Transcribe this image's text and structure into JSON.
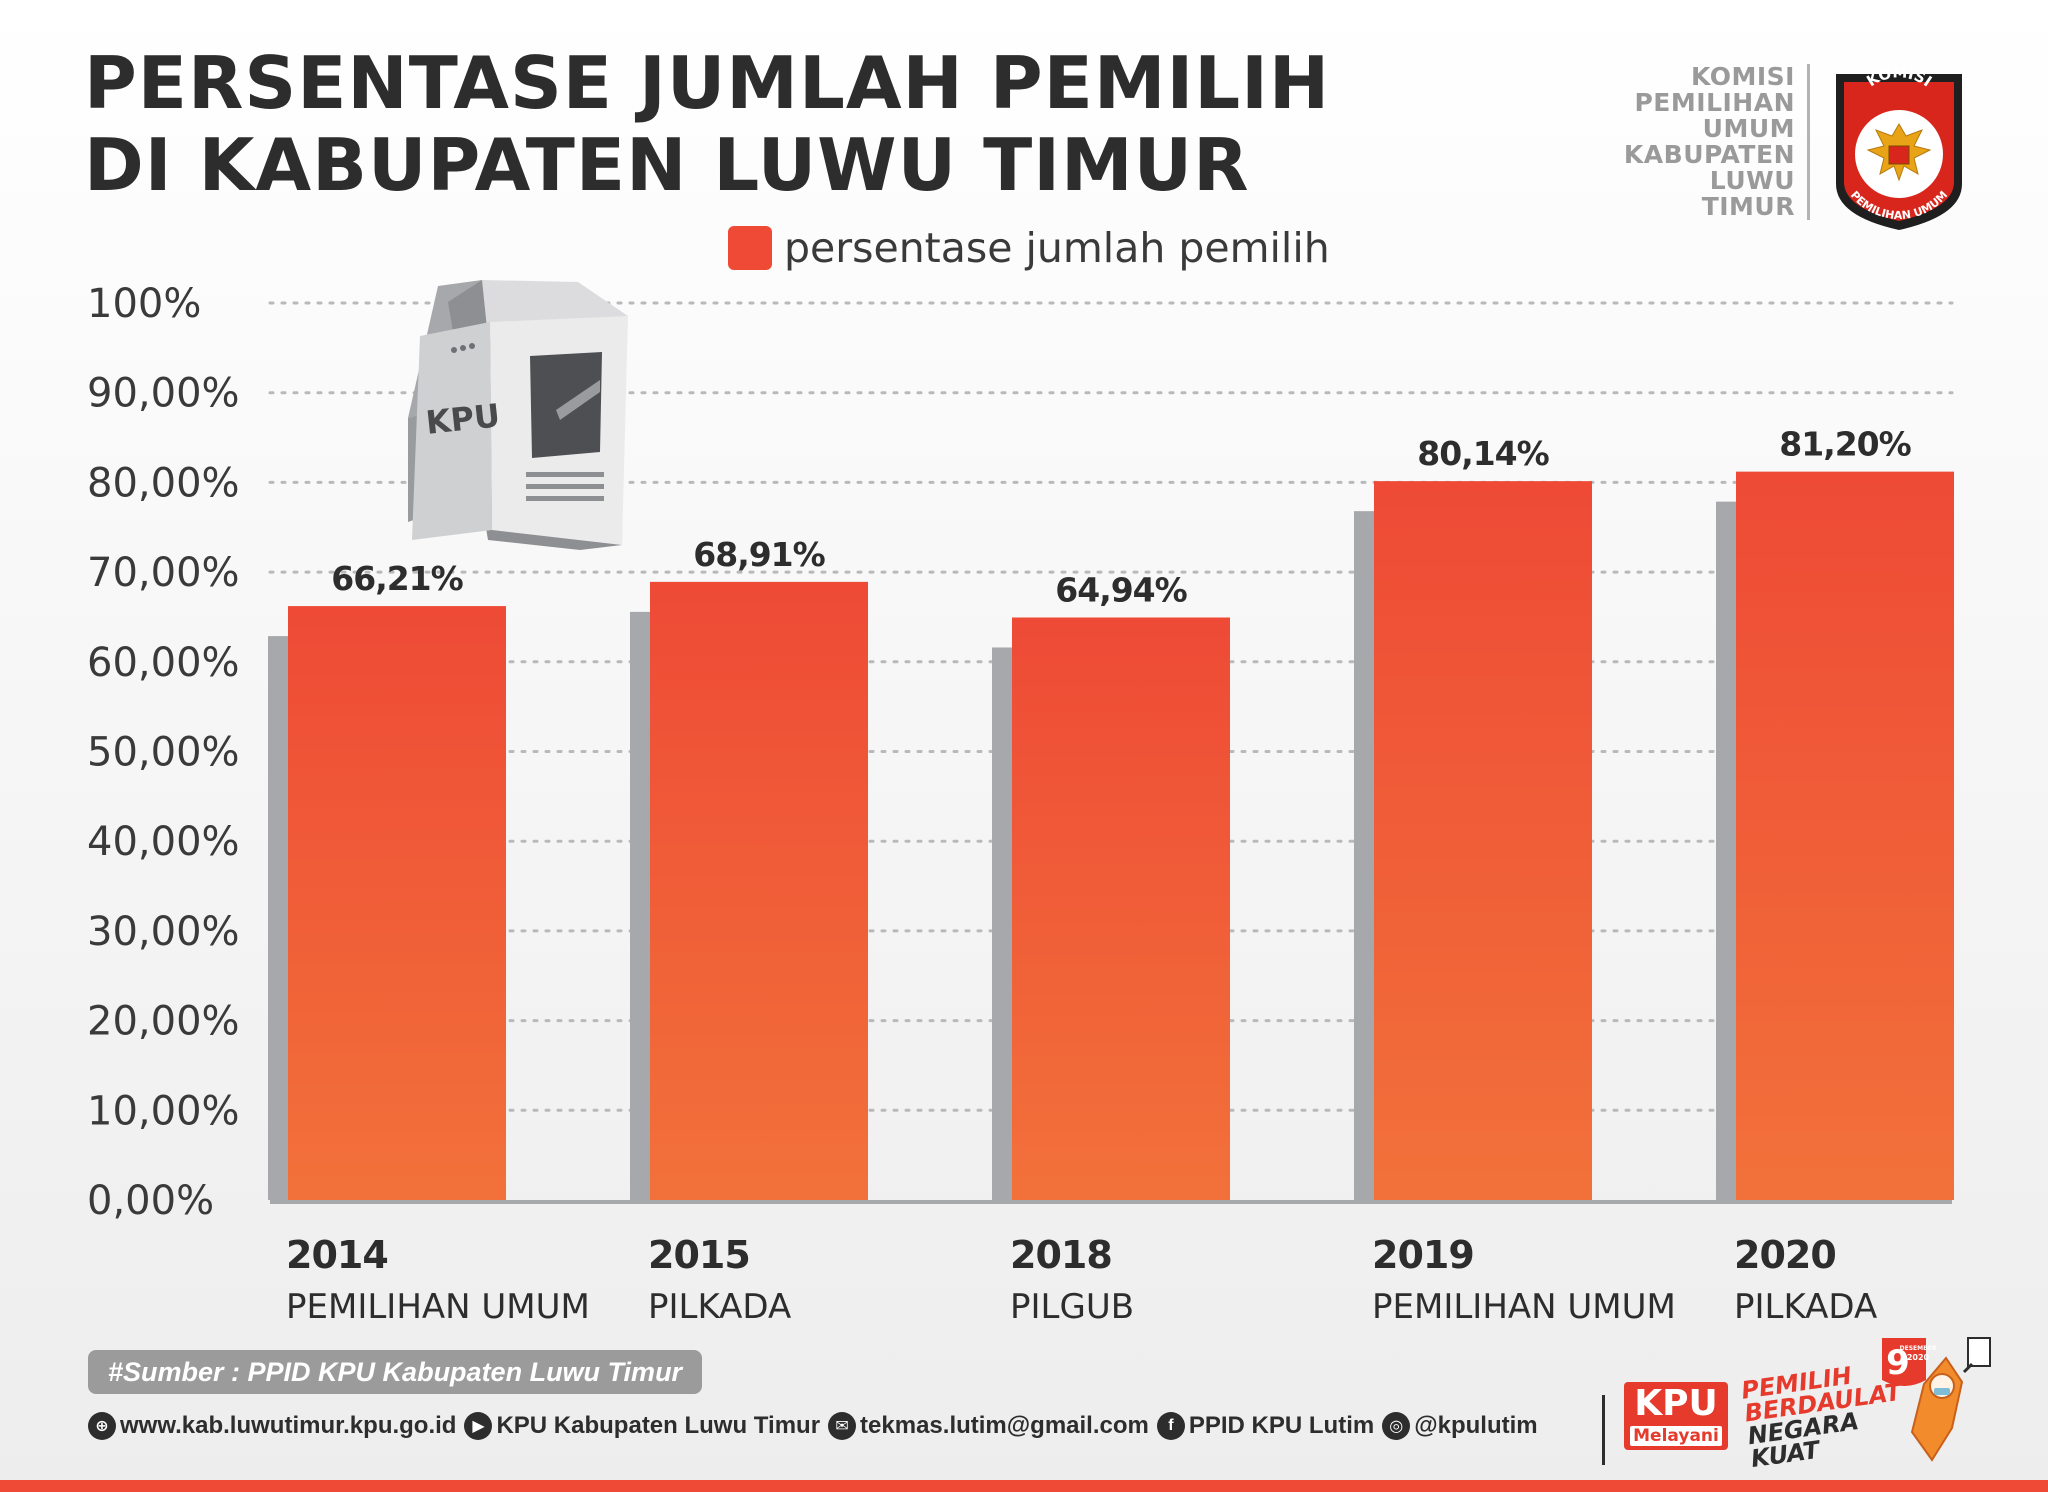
{
  "header": {
    "title_line1": "PERSENTASE JUMLAH PEMILIH",
    "title_line2": "DI KABUPATEN LUWU TIMUR"
  },
  "org": {
    "lines": [
      "KOMISI",
      "PEMILIHAN",
      "UMUM",
      "KABUPATEN",
      "LUWU",
      "TIMUR"
    ],
    "logo_top_text": "KOMISI",
    "logo_bottom_text": "PEMILIHAN UMUM"
  },
  "ballot_box": {
    "label": "KPU"
  },
  "legend": {
    "label": "persentase jumlah pemilih"
  },
  "chart_data": {
    "type": "bar",
    "categories": [
      "2014",
      "2015",
      "2018",
      "2019",
      "2020"
    ],
    "category_sublabels": [
      "PEMILIHAN UMUM",
      "PILKADA",
      "PILGUB",
      "PEMILIHAN UMUM",
      "PILKADA"
    ],
    "series": [
      {
        "name": "persentase jumlah pemilih",
        "values": [
          66.21,
          68.91,
          64.94,
          80.14,
          81.2
        ],
        "labels": [
          "66,21%",
          "68,91%",
          "64,94%",
          "80,14%",
          "81,20%"
        ]
      }
    ],
    "ylim": [
      0,
      100
    ],
    "yticks": [
      0,
      10,
      20,
      30,
      40,
      50,
      60,
      70,
      80,
      90,
      100
    ],
    "ytick_labels": [
      "0,00%",
      "10,00%",
      "20,00%",
      "30,00%",
      "40,00%",
      "50,00%",
      "60,00%",
      "70,00%",
      "80,00%",
      "90,00%",
      "100%"
    ],
    "grid": true,
    "legend_position": "top-center"
  },
  "footer": {
    "source": "#Sumber : PPID KPU Kabupaten Luwu Timur",
    "links": [
      {
        "icon": "globe-icon",
        "text": "www.kab.luwutimur.kpu.go.id"
      },
      {
        "icon": "youtube-icon",
        "text": "KPU Kabupaten Luwu Timur"
      },
      {
        "icon": "mail-icon",
        "text": "tekmas.lutim@gmail.com"
      },
      {
        "icon": "facebook-icon",
        "text": "PPID KPU Lutim"
      },
      {
        "icon": "instagram-icon",
        "text": "@kpulutim"
      }
    ],
    "kpu_melayani_big": "KPU",
    "kpu_melayani_small": "Melayani",
    "slogan_line1": "PEMILIH",
    "slogan_line2": "BERDAULAT",
    "slogan_line3": "NEGARA",
    "slogan_line4": "KUAT",
    "date_number": "9",
    "date_month": "DESEMBER",
    "date_year": "2020"
  },
  "colors": {
    "bar_top": "#ee4a36",
    "bar_bottom": "#f2713a",
    "bar_shadow": "#a7a8ab",
    "accent": "#ef4a35",
    "text_dark": "#2d2d2d"
  }
}
